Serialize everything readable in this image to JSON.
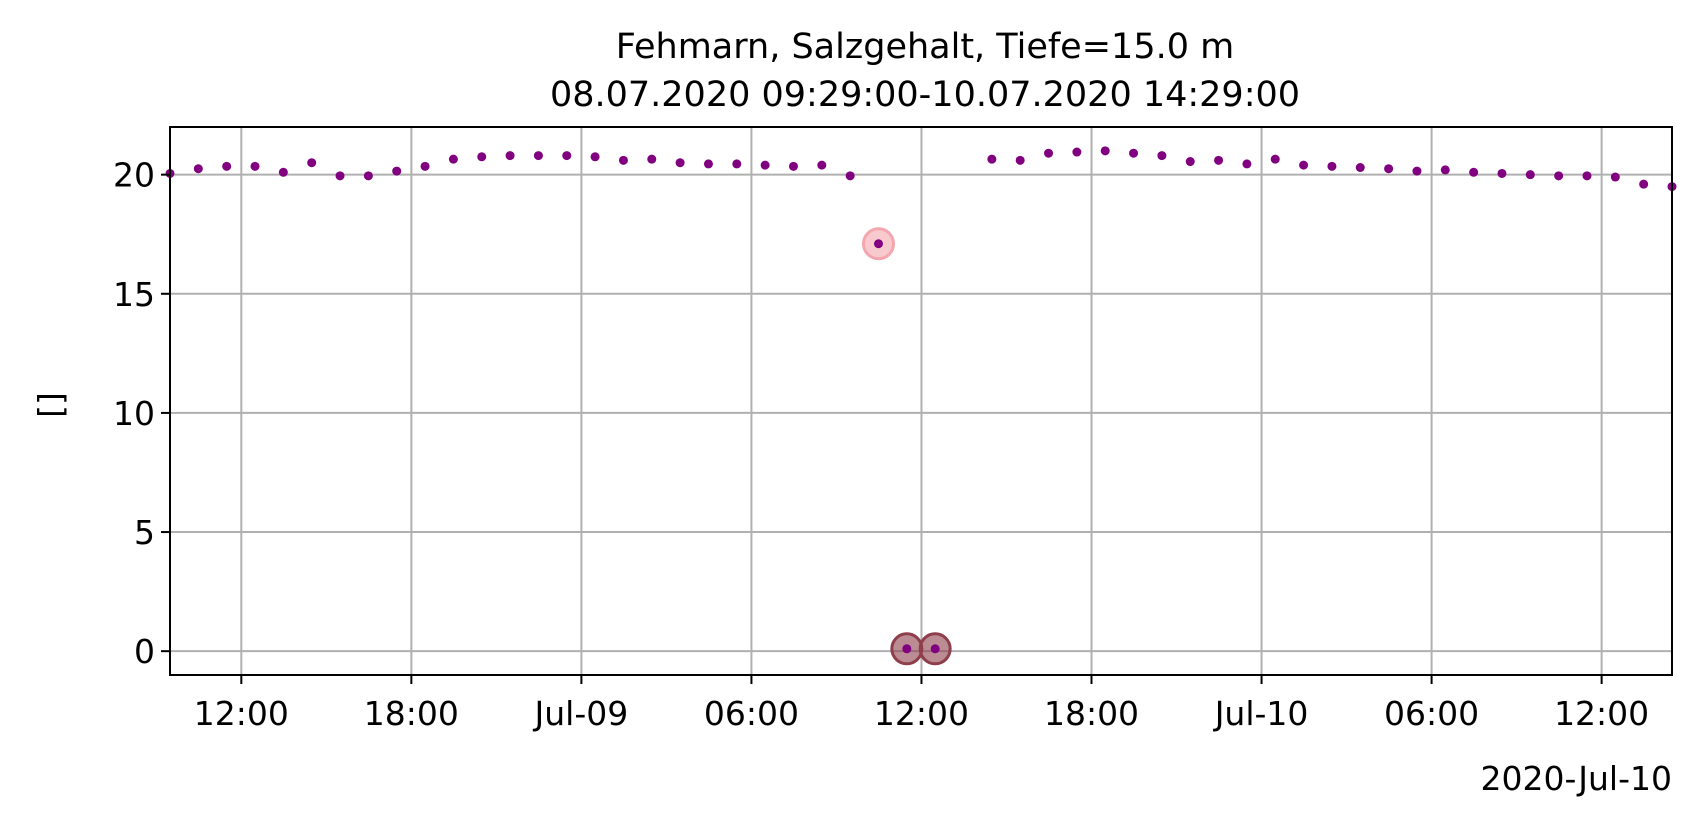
{
  "chart_data": {
    "type": "scatter",
    "title": "Fehmarn, Salzgehalt, Tiefe=15.0 m",
    "subtitle": "08.07.2020 09:29:00-10.07.2020 14:29:00",
    "xlabel": "",
    "ylabel": "[]",
    "x_offset_label": "2020-Jul-10",
    "xlim": [
      "2020-07-08 09:29",
      "2020-07-10 14:29"
    ],
    "ylim": [
      -1,
      22
    ],
    "grid": true,
    "legend": "none",
    "x_tick_labels": [
      {
        "t": "2020-07-08 12:00",
        "label": "12:00"
      },
      {
        "t": "2020-07-08 18:00",
        "label": "18:00"
      },
      {
        "t": "2020-07-09 00:00",
        "label": "Jul-09"
      },
      {
        "t": "2020-07-09 06:00",
        "label": "06:00"
      },
      {
        "t": "2020-07-09 12:00",
        "label": "12:00"
      },
      {
        "t": "2020-07-09 18:00",
        "label": "18:00"
      },
      {
        "t": "2020-07-10 00:00",
        "label": "Jul-10"
      },
      {
        "t": "2020-07-10 06:00",
        "label": "06:00"
      },
      {
        "t": "2020-07-10 12:00",
        "label": "12:00"
      }
    ],
    "y_tick_labels": [
      {
        "v": 0,
        "label": "0"
      },
      {
        "v": 5,
        "label": "5"
      },
      {
        "v": 10,
        "label": "10"
      },
      {
        "v": 15,
        "label": "15"
      },
      {
        "v": 20,
        "label": "20"
      }
    ],
    "colors": {
      "points": "#800080",
      "flag_pink": "#f4a6ae",
      "flag_dark": "#8e3f4b",
      "grid": "#b0b0b0"
    },
    "series": [
      {
        "points": [
          {
            "t": "2020-07-08 09:29",
            "y": 20.05
          },
          {
            "t": "2020-07-08 10:29",
            "y": 20.25
          },
          {
            "t": "2020-07-08 11:29",
            "y": 20.35
          },
          {
            "t": "2020-07-08 12:29",
            "y": 20.35
          },
          {
            "t": "2020-07-08 13:29",
            "y": 20.1
          },
          {
            "t": "2020-07-08 14:29",
            "y": 20.5
          },
          {
            "t": "2020-07-08 15:29",
            "y": 19.95
          },
          {
            "t": "2020-07-08 16:29",
            "y": 19.95
          },
          {
            "t": "2020-07-08 17:29",
            "y": 20.15
          },
          {
            "t": "2020-07-08 18:29",
            "y": 20.35
          },
          {
            "t": "2020-07-08 19:29",
            "y": 20.65
          },
          {
            "t": "2020-07-08 20:29",
            "y": 20.75
          },
          {
            "t": "2020-07-08 21:29",
            "y": 20.8
          },
          {
            "t": "2020-07-08 22:29",
            "y": 20.8
          },
          {
            "t": "2020-07-08 23:29",
            "y": 20.8
          },
          {
            "t": "2020-07-09 00:29",
            "y": 20.75
          },
          {
            "t": "2020-07-09 01:29",
            "y": 20.6
          },
          {
            "t": "2020-07-09 02:29",
            "y": 20.65
          },
          {
            "t": "2020-07-09 03:29",
            "y": 20.5
          },
          {
            "t": "2020-07-09 04:29",
            "y": 20.45
          },
          {
            "t": "2020-07-09 05:29",
            "y": 20.45
          },
          {
            "t": "2020-07-09 06:29",
            "y": 20.4
          },
          {
            "t": "2020-07-09 07:29",
            "y": 20.35
          },
          {
            "t": "2020-07-09 08:29",
            "y": 20.4
          },
          {
            "t": "2020-07-09 09:29",
            "y": 19.95
          },
          {
            "t": "2020-07-09 10:29",
            "y": 17.1,
            "flag": "pink"
          },
          {
            "t": "2020-07-09 11:29",
            "y": 0.1,
            "flag": "dark"
          },
          {
            "t": "2020-07-09 12:29",
            "y": 0.1,
            "flag": "dark"
          },
          {
            "t": "2020-07-09 14:29",
            "y": 20.65
          },
          {
            "t": "2020-07-09 15:29",
            "y": 20.6
          },
          {
            "t": "2020-07-09 16:29",
            "y": 20.9
          },
          {
            "t": "2020-07-09 17:29",
            "y": 20.95
          },
          {
            "t": "2020-07-09 18:29",
            "y": 21.0
          },
          {
            "t": "2020-07-09 19:29",
            "y": 20.9
          },
          {
            "t": "2020-07-09 20:29",
            "y": 20.8
          },
          {
            "t": "2020-07-09 21:29",
            "y": 20.55
          },
          {
            "t": "2020-07-09 22:29",
            "y": 20.6
          },
          {
            "t": "2020-07-09 23:29",
            "y": 20.45
          },
          {
            "t": "2020-07-10 00:29",
            "y": 20.65
          },
          {
            "t": "2020-07-10 01:29",
            "y": 20.4
          },
          {
            "t": "2020-07-10 02:29",
            "y": 20.35
          },
          {
            "t": "2020-07-10 03:29",
            "y": 20.3
          },
          {
            "t": "2020-07-10 04:29",
            "y": 20.25
          },
          {
            "t": "2020-07-10 05:29",
            "y": 20.15
          },
          {
            "t": "2020-07-10 06:29",
            "y": 20.2
          },
          {
            "t": "2020-07-10 07:29",
            "y": 20.1
          },
          {
            "t": "2020-07-10 08:29",
            "y": 20.05
          },
          {
            "t": "2020-07-10 09:29",
            "y": 20.0
          },
          {
            "t": "2020-07-10 10:29",
            "y": 19.95
          },
          {
            "t": "2020-07-10 11:29",
            "y": 19.95
          },
          {
            "t": "2020-07-10 12:29",
            "y": 19.9
          },
          {
            "t": "2020-07-10 13:29",
            "y": 19.6
          },
          {
            "t": "2020-07-10 14:29",
            "y": 19.5
          }
        ]
      }
    ]
  }
}
